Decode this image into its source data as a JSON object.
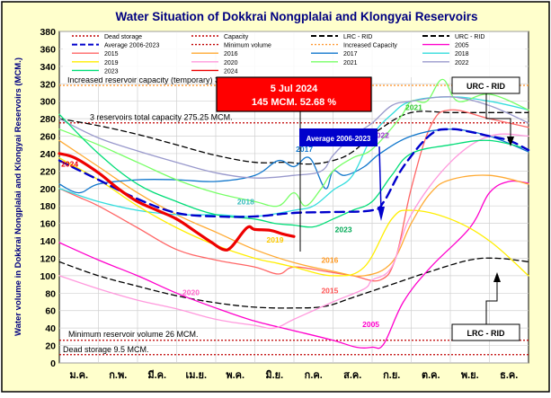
{
  "chart_data": {
    "type": "line",
    "title": "Water Situation of Dokkrai Nongplalai and Klongyai Reservoirs",
    "ylabel": "Water volume in Dokkrai Nongplalai and Klongyai Reservoirs (MCM.)",
    "ylim": [
      0,
      380
    ],
    "yticks": [
      0,
      20,
      40,
      60,
      80,
      100,
      120,
      140,
      160,
      180,
      200,
      220,
      240,
      260,
      280,
      300,
      320,
      340,
      360,
      380
    ],
    "xlim": [
      0,
      12
    ],
    "months": [
      "ม.ค.",
      "ก.พ.",
      "มี.ค.",
      "เม.ย.",
      "พ.ค.",
      "มิ.ย.",
      "ก.ค.",
      "ส.ค.",
      "ก.ย.",
      "ต.ค.",
      "พ.ย.",
      "ธ.ค."
    ],
    "grid": true,
    "legend_position": "top",
    "colors": {
      "background": "#ffffcc",
      "plot_background": "#ffffff",
      "frame": "#000000",
      "callout_bg": "#ff0000",
      "avg_box_bg": "#0000cc"
    },
    "reference_lines": [
      {
        "name": "Dead storage",
        "value": 9.5,
        "color": "#c00000",
        "style": "dotted",
        "label": "Dead storage 9.5 MCM."
      },
      {
        "name": "Capacity",
        "value": 275.25,
        "color": "#c00000",
        "style": "dotted",
        "label": "3 reservoirs total capacity 275.25 MCM."
      },
      {
        "name": "Minimum volume",
        "value": 26,
        "color": "#c00000",
        "style": "dotted",
        "label": "Minimum reservoir volume 26 MCM."
      },
      {
        "name": "Increased Capacity",
        "value": 318.13,
        "color": "#ff9933",
        "style": "dotted",
        "label": "Increased reservoir capacity (temporary)  318.13 MCM."
      }
    ],
    "legend": [
      {
        "name": "Dead storage",
        "color": "#c00000",
        "style": "dotted"
      },
      {
        "name": "Capacity",
        "color": "#c00000",
        "style": "dotted"
      },
      {
        "name": "LRC - RID",
        "color": "#000000",
        "style": "dashed"
      },
      {
        "name": "URC - RID",
        "color": "#000000",
        "style": "dashed"
      },
      {
        "name": "Average 2006-2023",
        "color": "#0000cc",
        "style": "dashed"
      },
      {
        "name": "Minimum volume",
        "color": "#c00000",
        "style": "dotted"
      },
      {
        "name": "Increased Capacity",
        "color": "#ff9933",
        "style": "dotted"
      },
      {
        "name": "2005",
        "color": "#ff00cc",
        "style": "solid"
      },
      {
        "name": "2015",
        "color": "#ff6666",
        "style": "solid"
      },
      {
        "name": "2016",
        "color": "#ffaa33",
        "style": "solid"
      },
      {
        "name": "2017",
        "color": "#1177cc",
        "style": "solid"
      },
      {
        "name": "2018",
        "color": "#33dddd",
        "style": "solid"
      },
      {
        "name": "2019",
        "color": "#ffee00",
        "style": "solid"
      },
      {
        "name": "2020",
        "color": "#ff99dd",
        "style": "solid"
      },
      {
        "name": "2021",
        "color": "#77ff66",
        "style": "solid"
      },
      {
        "name": "2022",
        "color": "#9999cc",
        "style": "solid"
      },
      {
        "name": "2023",
        "color": "#00dd77",
        "style": "solid"
      },
      {
        "name": "2024",
        "color": "#ee0000",
        "style": "solid"
      }
    ],
    "series": [
      {
        "name": "LRC - RID",
        "color": "#000000",
        "width": 1.3,
        "dash": "6,4",
        "x": [
          0,
          1,
          2,
          3,
          4,
          5,
          6,
          6.8,
          7.5,
          8.5,
          9.5,
          10.5,
          11.2,
          12
        ],
        "y": [
          116,
          100,
          88,
          77,
          69,
          64,
          63,
          65,
          75,
          90,
          105,
          118,
          120,
          116
        ]
      },
      {
        "name": "URC - RID",
        "color": "#000000",
        "width": 1.3,
        "dash": "6,4",
        "x": [
          0,
          1,
          2,
          3,
          4,
          5,
          5.8,
          6.4,
          7,
          7.5,
          8.2,
          9,
          10,
          11,
          12
        ],
        "y": [
          280,
          272,
          262,
          250,
          238,
          230,
          230,
          228,
          232,
          242,
          268,
          287,
          287,
          287,
          287
        ]
      },
      {
        "name": "2005",
        "color": "#ff00cc",
        "width": 1.3,
        "x": [
          0,
          1,
          2,
          3,
          4,
          5,
          6,
          7,
          7.6,
          8,
          8.3,
          8.8,
          9.5,
          10.5,
          11,
          11.5,
          12
        ],
        "y": [
          138,
          118,
          100,
          80,
          63,
          48,
          37,
          26,
          18,
          18,
          22,
          70,
          110,
          155,
          195,
          208,
          206
        ]
      },
      {
        "name": "2015",
        "color": "#ff6666",
        "width": 1.3,
        "x": [
          0,
          0.5,
          1,
          2,
          3,
          4,
          5,
          5.6,
          6,
          6.8,
          7.5,
          8.2,
          8.6,
          9,
          9.5,
          10,
          11,
          12
        ],
        "y": [
          200,
          190,
          180,
          155,
          130,
          118,
          110,
          102,
          110,
          105,
          100,
          95,
          120,
          200,
          272,
          290,
          280,
          270
        ]
      },
      {
        "name": "2016",
        "color": "#ffaa33",
        "width": 1.3,
        "x": [
          0,
          1,
          2,
          3,
          4,
          5,
          6,
          7,
          7.8,
          8.5,
          9,
          9.5,
          10,
          11,
          12
        ],
        "y": [
          255,
          225,
          195,
          170,
          150,
          130,
          115,
          105,
          100,
          115,
          160,
          195,
          210,
          215,
          205
        ]
      },
      {
        "name": "2017",
        "color": "#1177cc",
        "width": 1.3,
        "x": [
          0,
          0.5,
          1,
          2,
          3,
          4,
          5,
          5.6,
          6,
          6.4,
          6.8,
          7,
          7.3,
          7.8,
          8.2,
          9,
          10,
          11,
          12
        ],
        "y": [
          205,
          195,
          205,
          210,
          210,
          208,
          215,
          232,
          225,
          235,
          200,
          220,
          215,
          225,
          240,
          260,
          268,
          260,
          242
        ]
      },
      {
        "name": "2018",
        "color": "#33dddd",
        "width": 1.3,
        "x": [
          0,
          1,
          2,
          3,
          4,
          5,
          6,
          6.5,
          7,
          7.5,
          8,
          8.5,
          9,
          10,
          11,
          12
        ],
        "y": [
          200,
          185,
          175,
          170,
          170,
          168,
          175,
          180,
          198,
          215,
          260,
          285,
          300,
          305,
          300,
          290
        ]
      },
      {
        "name": "2019",
        "color": "#ffee00",
        "width": 1.3,
        "x": [
          0,
          1,
          2,
          3,
          4,
          5,
          5.5,
          6,
          7,
          7.8,
          8.5,
          9,
          10,
          11,
          12
        ],
        "y": [
          235,
          210,
          180,
          155,
          135,
          120,
          115,
          110,
          100,
          110,
          165,
          175,
          165,
          140,
          100
        ]
      },
      {
        "name": "2020",
        "color": "#ff99dd",
        "width": 1.3,
        "x": [
          0,
          1,
          2,
          3,
          4,
          5,
          5.5,
          6,
          7,
          7.8,
          8,
          8.5,
          9,
          10,
          11,
          12
        ],
        "y": [
          100,
          85,
          72,
          62,
          50,
          43,
          40,
          50,
          70,
          85,
          95,
          110,
          170,
          230,
          260,
          260
        ]
      },
      {
        "name": "2021",
        "color": "#77ff66",
        "width": 1.3,
        "x": [
          0,
          1,
          2,
          3,
          4,
          5,
          5.6,
          6,
          6.3,
          6.7,
          7,
          7.5,
          8,
          8.7,
          9,
          9.4,
          9.8,
          10.2,
          11,
          12
        ],
        "y": [
          268,
          250,
          230,
          210,
          195,
          185,
          180,
          195,
          180,
          200,
          220,
          235,
          245,
          280,
          300,
          300,
          325,
          300,
          308,
          290
        ]
      },
      {
        "name": "2022",
        "color": "#9999cc",
        "width": 1.3,
        "x": [
          0,
          1,
          2,
          3,
          4,
          5,
          6,
          6.7,
          7,
          7.5,
          8,
          8.5,
          9,
          10,
          11,
          12
        ],
        "y": [
          280,
          258,
          243,
          230,
          218,
          212,
          215,
          220,
          238,
          260,
          275,
          295,
          300,
          305,
          295,
          275
        ]
      },
      {
        "name": "2023",
        "color": "#00dd77",
        "width": 1.3,
        "x": [
          0,
          1,
          2,
          3,
          4,
          5,
          5.5,
          6,
          6.5,
          7,
          7.5,
          8,
          8.5,
          9,
          10,
          11,
          12
        ],
        "y": [
          285,
          240,
          205,
          185,
          170,
          165,
          160,
          158,
          156,
          165,
          175,
          185,
          215,
          240,
          250,
          255,
          245
        ]
      },
      {
        "name": "Average 2006-2023",
        "color": "#0000cc",
        "width": 2.4,
        "dash": "10,6",
        "x": [
          0,
          1,
          2,
          3,
          4,
          5,
          6,
          7,
          8,
          8.3,
          8.8,
          9.5,
          10,
          10.5,
          11,
          11.5,
          12
        ],
        "y": [
          232,
          210,
          188,
          172,
          168,
          168,
          172,
          173,
          175,
          185,
          225,
          262,
          268,
          265,
          260,
          255,
          244
        ]
      },
      {
        "name": "2024",
        "color": "#ee0000",
        "width": 3.2,
        "x": [
          0,
          0.4,
          1,
          1.5,
          2,
          2.5,
          3,
          3.5,
          3.9,
          4.2,
          4.4,
          4.8,
          5,
          5.4,
          5.7,
          6
        ],
        "y": [
          240,
          235,
          218,
          200,
          185,
          175,
          165,
          150,
          138,
          130,
          133,
          155,
          153,
          152,
          148,
          145
        ]
      }
    ],
    "annotations": [
      {
        "text": "5 Jul 2024",
        "kind": "callout"
      },
      {
        "text": "145 MCM. 52.68 %",
        "kind": "callout"
      },
      {
        "text": "Average 2006-2023",
        "kind": "avg_box"
      },
      {
        "text": "URC - RID",
        "kind": "box"
      },
      {
        "text": "LRC - RID",
        "kind": "box"
      }
    ],
    "series_labels": [
      {
        "text": "2024",
        "color": "#ee0000",
        "x": 0.05,
        "y": 225
      },
      {
        "text": "2017",
        "color": "#1177cc",
        "x": 6.05,
        "y": 242
      },
      {
        "text": "2021",
        "color": "#33cc33",
        "x": 8.85,
        "y": 290
      },
      {
        "text": "2022",
        "color": "#9933cc",
        "x": 8.0,
        "y": 258
      },
      {
        "text": "2018",
        "color": "#33bbbb",
        "x": 4.55,
        "y": 182
      },
      {
        "text": "2023",
        "color": "#00aa55",
        "x": 7.05,
        "y": 150
      },
      {
        "text": "2019",
        "color": "#ffcc00",
        "x": 5.3,
        "y": 138
      },
      {
        "text": "2016",
        "color": "#ff9922",
        "x": 6.7,
        "y": 115
      },
      {
        "text": "2015",
        "color": "#ff5555",
        "x": 6.7,
        "y": 80
      },
      {
        "text": "2020",
        "color": "#ff66cc",
        "x": 3.15,
        "y": 78
      },
      {
        "text": "2005",
        "color": "#ff00cc",
        "x": 7.75,
        "y": 41
      }
    ]
  }
}
